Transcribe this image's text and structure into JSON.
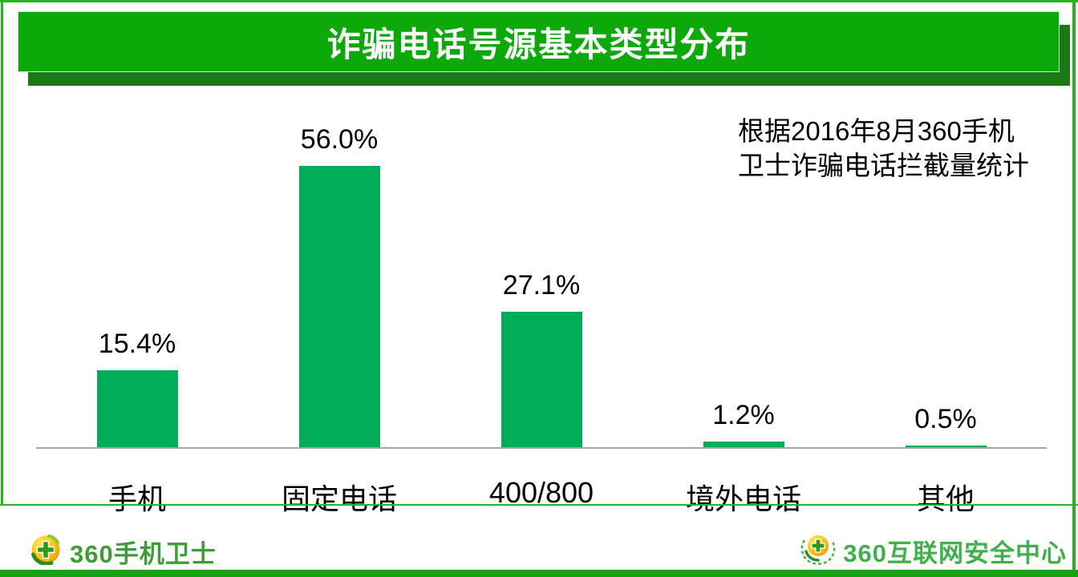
{
  "header": {
    "title": "诈骗电话号源基本类型分布"
  },
  "annotation": {
    "line1": "根据2016年8月360手机",
    "line2": "卫士诈骗电话拦截量统计"
  },
  "chart_data": {
    "type": "bar",
    "title": "诈骗电话号源基本类型分布",
    "categories": [
      "手机",
      "固定电话",
      "400/800",
      "境外电话",
      "其他"
    ],
    "values": [
      15.4,
      56.0,
      27.1,
      1.2,
      0.5
    ],
    "value_labels": [
      "15.4%",
      "56.0%",
      "27.1%",
      "1.2%",
      "0.5%"
    ],
    "xlabel": "",
    "ylabel": "",
    "ylim": [
      0,
      60
    ],
    "grid": false,
    "legend_position": "none",
    "bar_color": "#00AC58",
    "axis_color": "#A6A6A6"
  },
  "footer": {
    "left_logo_text": "360手机卫士",
    "right_logo_text": "360互联网安全中心"
  },
  "colors": {
    "banner_green": "#0DA90A",
    "banner_shadow_green": "#1A7912",
    "frame_green": "#22B31E",
    "bottom_bar_green": "#18A015",
    "bar_green": "#00AC58",
    "axis_gray": "#A6A6A6",
    "footer_left_text_green": "#3E9D38",
    "footer_right_text_green": "#3FB04A",
    "title_text": "#FFFFFF",
    "body_text": "#000000"
  }
}
